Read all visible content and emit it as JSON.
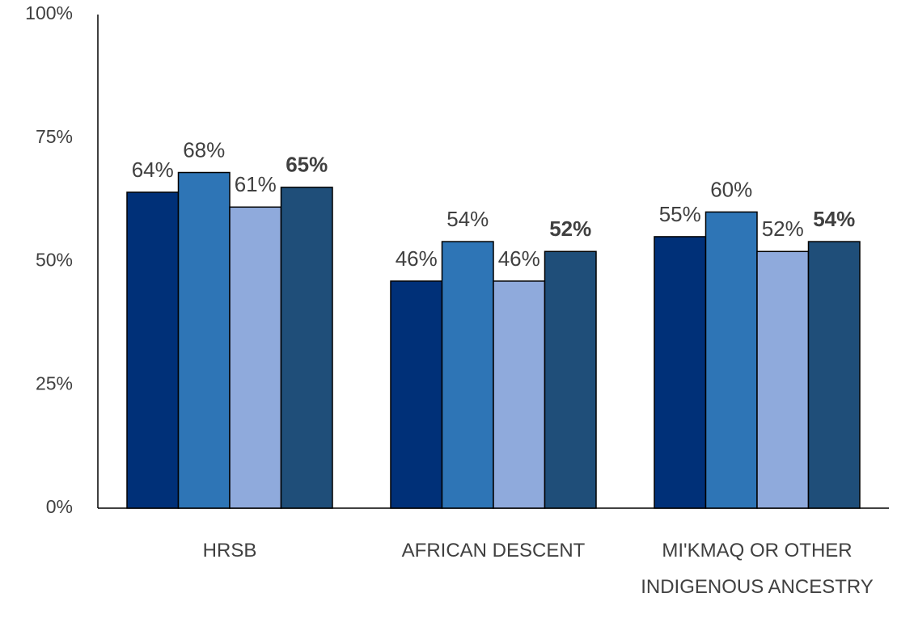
{
  "chart_data": {
    "type": "bar",
    "categories": [
      "HRSB",
      "AFRICAN DESCENT",
      "MI'KMAQ OR OTHER INDIGENOUS ANCESTRY"
    ],
    "series": [
      {
        "color": "#003078",
        "values": [
          64,
          46,
          55
        ],
        "value_labels": [
          "64%",
          "46%",
          "55%"
        ]
      },
      {
        "color": "#2e75b6",
        "values": [
          68,
          54,
          60
        ],
        "value_labels": [
          "68%",
          "54%",
          "60%"
        ]
      },
      {
        "color": "#8faadc",
        "values": [
          61,
          46,
          52
        ],
        "value_labels": [
          "61%",
          "46%",
          "52%"
        ]
      },
      {
        "color": "#1f4e79",
        "values": [
          65,
          52,
          54
        ],
        "value_labels": [
          "65%",
          "52%",
          "54%"
        ],
        "label_bold": true
      }
    ],
    "ylim": [
      0,
      100
    ],
    "yticks": [
      {
        "value": 0,
        "label": "0%"
      },
      {
        "value": 25,
        "label": "25%"
      },
      {
        "value": 50,
        "label": "50%"
      },
      {
        "value": 75,
        "label": "75%"
      },
      {
        "value": 100,
        "label": "100%"
      }
    ],
    "grid": false
  }
}
